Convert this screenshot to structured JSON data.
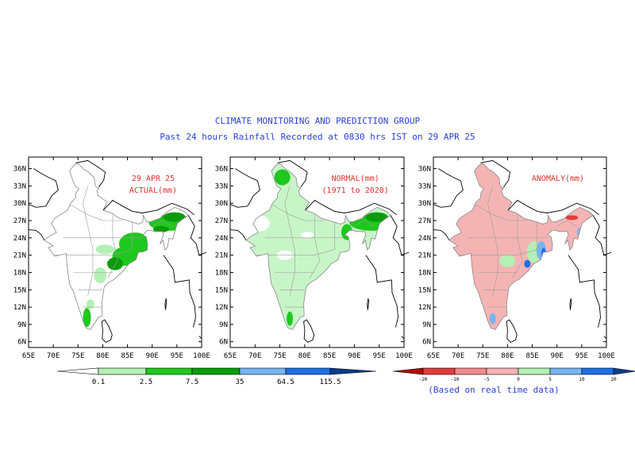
{
  "header": {
    "line1": "CLIMATE MONITORING AND PREDICTION GROUP",
    "line2": "Past 24 hours Rainfall Recorded at 0830 hrs IST on 29 APR 25"
  },
  "axes": {
    "lat_labels": [
      "36N",
      "33N",
      "30N",
      "27N",
      "24N",
      "21N",
      "18N",
      "15N",
      "12N",
      "9N",
      "6N"
    ],
    "lon_labels": [
      "65E",
      "70E",
      "75E",
      "80E",
      "85E",
      "90E",
      "95E",
      "100E"
    ]
  },
  "panels": [
    {
      "label_line1": "29 APR 25",
      "label_line2": "ACTUAL(mm)",
      "label_color": "#e03030"
    },
    {
      "label_line1": "NORMAL(mm)",
      "label_line2": "(1971 to 2020)",
      "label_color": "#e03030"
    },
    {
      "label_line1": "ANOMALY(mm)",
      "label_line2": "",
      "label_color": "#e03030"
    }
  ],
  "legend_rainfall": {
    "ticks": [
      "0.1",
      "2.5",
      "7.5",
      "35",
      "64.5",
      "115.5"
    ],
    "colors": [
      "#ffffff",
      "#b4f0b4",
      "#1ec81e",
      "#0a9c0a",
      "#78b4f0",
      "#1e6ee6",
      "#0a3c8c"
    ]
  },
  "legend_anomaly": {
    "ticks": [
      "-20",
      "-10",
      "-5",
      "0",
      "5",
      "10",
      "20"
    ],
    "colors": [
      "#b40a0a",
      "#e03c3c",
      "#f08c8c",
      "#f5b4b4",
      "#b4f0b4",
      "#78b4f0",
      "#1e6ee6",
      "#0a3c8c"
    ],
    "note": "(Based on real time data)"
  },
  "colors": {
    "title": "#2a3fd6",
    "actual_green": "#1ec81e",
    "dark_green": "#0a9c0a",
    "normal_light": "#c8f5c8",
    "anomaly_pink": "#f5b4b4"
  }
}
